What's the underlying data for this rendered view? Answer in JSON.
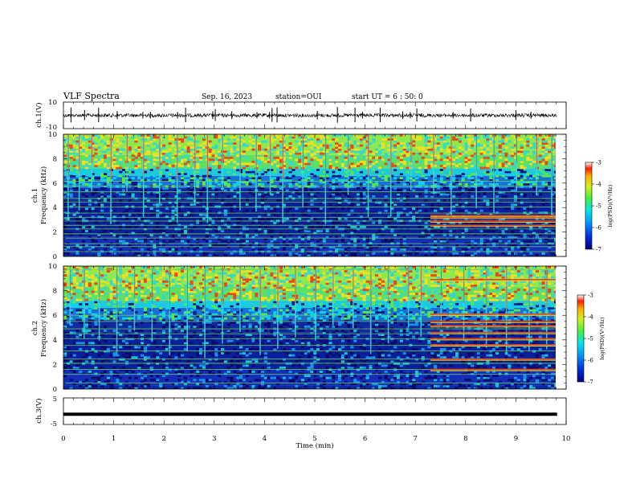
{
  "header": {
    "title": "VLF Spectra",
    "date": "Sep. 16, 2023",
    "station": "station=OUI",
    "start": "start UT =  6 : 50: 0"
  },
  "chart_data": [
    {
      "id": "ch1_waveform",
      "type": "line",
      "ylabel": "ch.1(V)",
      "ylim": [
        -10,
        10
      ],
      "yticks": [
        "10",
        "-10"
      ],
      "x_range_min": [
        0,
        9.82
      ],
      "baseline_v": 0,
      "spikes_min": [
        0.15,
        0.42,
        0.7,
        1.07,
        1.58,
        1.73,
        2.27,
        2.43,
        2.97,
        3.02,
        3.35,
        3.85,
        4.1,
        4.15,
        4.25,
        5.05,
        5.45,
        5.8,
        5.95,
        6.3,
        6.75,
        6.9,
        7.03,
        7.75,
        8.1,
        9.0,
        9.3
      ]
    },
    {
      "id": "ch1_spectrogram",
      "type": "heatmap",
      "ylabel": [
        "ch.1",
        "Frequency (kHz)"
      ],
      "ylim": [
        0,
        10
      ],
      "yticks": [
        "0",
        "2",
        "4",
        "6",
        "8",
        "10"
      ],
      "x_range_min": [
        0,
        9.82
      ],
      "colorbar": {
        "label": "log(PSD)(V²/Hz)",
        "range": [
          -7,
          -3
        ],
        "ticks": [
          "-3",
          "-4",
          "-5",
          "-6",
          "-7"
        ]
      },
      "step_change_min": 7.3,
      "bands_khz": [
        0.4,
        0.8,
        1.05,
        1.5,
        1.85,
        2.25,
        2.55,
        2.9,
        3.2,
        3.55,
        4.05,
        4.45,
        4.75,
        5.3,
        5.75,
        6.15
      ],
      "bands_after_step_khz": [
        2.55,
        2.9,
        3.2,
        3.35
      ],
      "vertical_streaks_min": [
        0.08,
        0.3,
        0.55,
        0.93,
        1.25,
        1.58,
        1.9,
        2.25,
        2.6,
        2.85,
        3.15,
        3.5,
        3.82,
        4.1,
        4.35,
        4.75,
        5.2,
        5.65,
        6.05,
        6.5,
        6.9,
        7.35,
        7.7,
        8.2,
        8.55,
        9.0,
        9.4,
        9.7
      ]
    },
    {
      "id": "ch2_spectrogram",
      "type": "heatmap",
      "ylabel": [
        "ch.2",
        "Frequency (kHz)"
      ],
      "ylim": [
        0,
        10
      ],
      "yticks": [
        "0",
        "2",
        "4",
        "6",
        "8",
        "10"
      ],
      "x_range_min": [
        0,
        9.82
      ],
      "colorbar": {
        "label": "log(PSD)(V²/Hz)",
        "range": [
          -7,
          -3
        ],
        "ticks": [
          "-3",
          "-4",
          "-5",
          "-6",
          "-7"
        ]
      },
      "step_change_min": 7.3,
      "bands_khz": [
        0.5,
        1.2,
        1.6,
        2.1,
        2.45,
        3.1,
        3.55,
        4.1,
        4.5,
        4.9,
        5.5,
        6.0,
        9.7
      ],
      "bands_after_step_khz": [
        1.6,
        2.45,
        3.6,
        4.1,
        4.6,
        5.15,
        5.5,
        6.1,
        8.9
      ],
      "vertical_streaks_min": [
        0.12,
        0.4,
        0.7,
        1.05,
        1.4,
        1.75,
        2.1,
        2.45,
        2.8,
        3.15,
        3.5,
        3.9,
        4.25,
        4.6,
        5.0,
        5.35,
        5.75,
        6.1,
        6.45,
        6.85,
        7.1,
        7.5,
        7.95,
        8.4,
        8.8,
        9.25,
        9.6
      ]
    },
    {
      "id": "ch3_waveform",
      "type": "line",
      "ylabel": "ch.3(V)",
      "ylim": [
        -5,
        5
      ],
      "yticks": [
        "5",
        "-5"
      ],
      "x_range_min": [
        0,
        9.82
      ],
      "baseline_v": -1
    }
  ],
  "x_axis": {
    "label": "Time (min)",
    "range": [
      0,
      10
    ],
    "ticks": [
      "0",
      "1",
      "2",
      "3",
      "4",
      "5",
      "6",
      "7",
      "8",
      "9",
      "10"
    ]
  },
  "colors": {
    "low": "#0a0a8a",
    "mid_low": "#1560d0",
    "mid": "#18d0e0",
    "mid_high": "#58e848",
    "high": "#f0e020",
    "peak": "#e83010"
  }
}
